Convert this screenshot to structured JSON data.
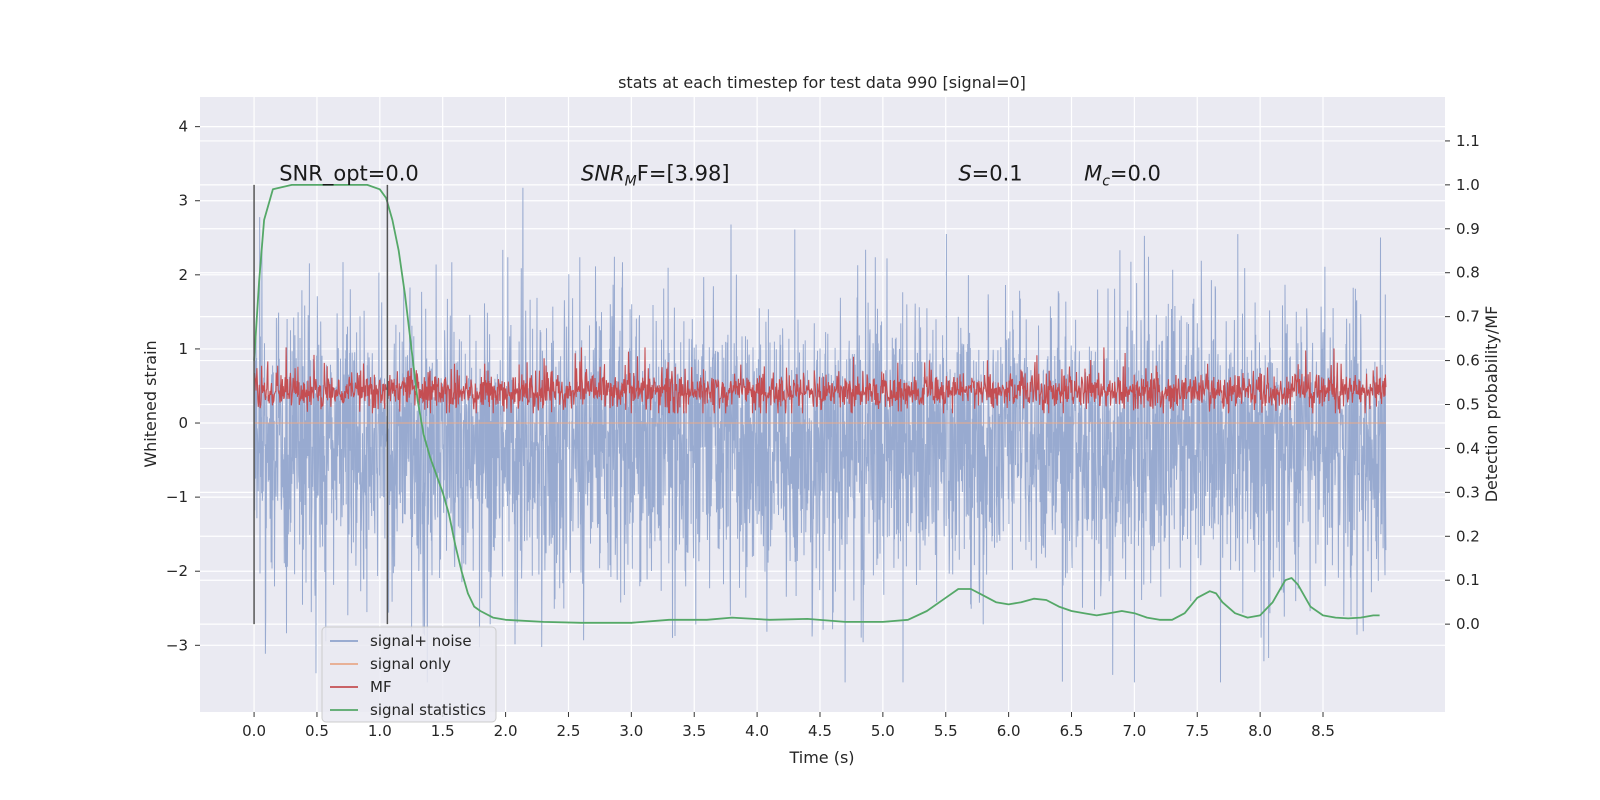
{
  "chart_data": {
    "type": "line",
    "title": "stats at each timestep for test data 990 [signal=0]",
    "xlabel": "Time (s)",
    "ylabel": "Whitened strain",
    "ylabel_right": "Detection probability/MF",
    "xlim": [
      -0.43,
      9.47
    ],
    "ylim": [
      -3.9,
      4.4
    ],
    "ylim_right": [
      -0.2,
      1.2
    ],
    "x_ticks": [
      0.0,
      0.5,
      1.0,
      1.5,
      2.0,
      2.5,
      3.0,
      3.5,
      4.0,
      4.5,
      5.0,
      5.5,
      6.0,
      6.5,
      7.0,
      7.5,
      8.0,
      8.5
    ],
    "x_tick_labels": [
      "0.0",
      "0.5",
      "1.0",
      "1.5",
      "2.0",
      "2.5",
      "3.0",
      "3.5",
      "4.0",
      "4.5",
      "5.0",
      "5.5",
      "6.0",
      "6.5",
      "7.0",
      "7.5",
      "8.0",
      "8.5"
    ],
    "y_ticks": [
      -3,
      -2,
      -1,
      0,
      1,
      2,
      3,
      4
    ],
    "y_tick_labels": [
      "−3",
      "−2",
      "−1",
      "0",
      "1",
      "2",
      "3",
      "4"
    ],
    "y_ticks_right": [
      0.0,
      0.1,
      0.2,
      0.3,
      0.4,
      0.5,
      0.6,
      0.7,
      0.8,
      0.9,
      1.0,
      1.1
    ],
    "y_tick_labels_right": [
      "0.0",
      "0.1",
      "0.2",
      "0.3",
      "0.4",
      "0.5",
      "0.6",
      "0.7",
      "0.8",
      "0.9",
      "1.0",
      "1.1"
    ],
    "grid": true,
    "legend_position": "bottom-left",
    "series": [
      {
        "name": "signal+ noise",
        "axis": "left",
        "color": "#8fa3cc",
        "kind": "noise",
        "x_range": [
          0.0,
          9.0
        ],
        "approx_center": -0.3,
        "approx_extent": [
          -3.5,
          4.0
        ]
      },
      {
        "name": "signal only",
        "axis": "left",
        "color": "#e8a98a",
        "values_constant": 0.0
      },
      {
        "name": "MF",
        "axis": "right",
        "color": "#c44e52",
        "kind": "noise",
        "x_range": [
          0.0,
          9.0
        ],
        "approx_center": 0.53,
        "approx_extent": [
          0.48,
          0.63
        ]
      },
      {
        "name": "signal statistics",
        "axis": "right",
        "color": "#55a868",
        "x": [
          0.0,
          0.04,
          0.08,
          0.15,
          0.3,
          0.5,
          0.7,
          0.9,
          1.0,
          1.05,
          1.1,
          1.15,
          1.2,
          1.25,
          1.3,
          1.35,
          1.4,
          1.45,
          1.5,
          1.55,
          1.6,
          1.65,
          1.7,
          1.75,
          1.8,
          1.9,
          2.0,
          2.3,
          2.6,
          3.0,
          3.3,
          3.6,
          3.8,
          4.1,
          4.4,
          4.7,
          5.0,
          5.2,
          5.35,
          5.5,
          5.6,
          5.7,
          5.8,
          5.9,
          6.0,
          6.1,
          6.2,
          6.3,
          6.4,
          6.5,
          6.6,
          6.7,
          6.8,
          6.9,
          7.0,
          7.1,
          7.2,
          7.3,
          7.4,
          7.5,
          7.6,
          7.65,
          7.7,
          7.8,
          7.9,
          8.0,
          8.1,
          8.2,
          8.25,
          8.3,
          8.4,
          8.5,
          8.6,
          8.7,
          8.8,
          8.9,
          8.95
        ],
        "y": [
          0.6,
          0.78,
          0.92,
          0.99,
          1.0,
          1.0,
          1.0,
          1.0,
          0.99,
          0.97,
          0.92,
          0.85,
          0.75,
          0.63,
          0.51,
          0.43,
          0.38,
          0.34,
          0.3,
          0.25,
          0.18,
          0.12,
          0.07,
          0.04,
          0.03,
          0.015,
          0.01,
          0.005,
          0.003,
          0.003,
          0.01,
          0.01,
          0.015,
          0.01,
          0.012,
          0.005,
          0.005,
          0.01,
          0.03,
          0.06,
          0.08,
          0.08,
          0.065,
          0.05,
          0.045,
          0.05,
          0.058,
          0.055,
          0.04,
          0.03,
          0.025,
          0.02,
          0.025,
          0.03,
          0.025,
          0.015,
          0.01,
          0.01,
          0.025,
          0.06,
          0.075,
          0.07,
          0.05,
          0.025,
          0.015,
          0.02,
          0.05,
          0.1,
          0.105,
          0.09,
          0.04,
          0.02,
          0.015,
          0.013,
          0.015,
          0.02,
          0.02
        ]
      }
    ],
    "vertical_markers": {
      "color": "#555555",
      "x": [
        0.0,
        1.06
      ],
      "y_range_right": [
        0.0,
        1.0
      ]
    },
    "annotations": [
      {
        "text": "SNR_opt=0.0",
        "x": 0.2,
        "y_right": 1.01,
        "style": "normal"
      },
      {
        "text": "F=[3.98]",
        "math_prefix": "SNR",
        "math_sub": "M",
        "x": 2.6,
        "y_right": 1.01,
        "style": "math"
      },
      {
        "text": "=0.1",
        "math_prefix": "S",
        "x": 5.6,
        "y_right": 1.01,
        "style": "math"
      },
      {
        "text": "=0.0",
        "math_prefix": "M",
        "math_sub": "c",
        "x": 6.6,
        "y_right": 1.01,
        "style": "math"
      }
    ]
  }
}
